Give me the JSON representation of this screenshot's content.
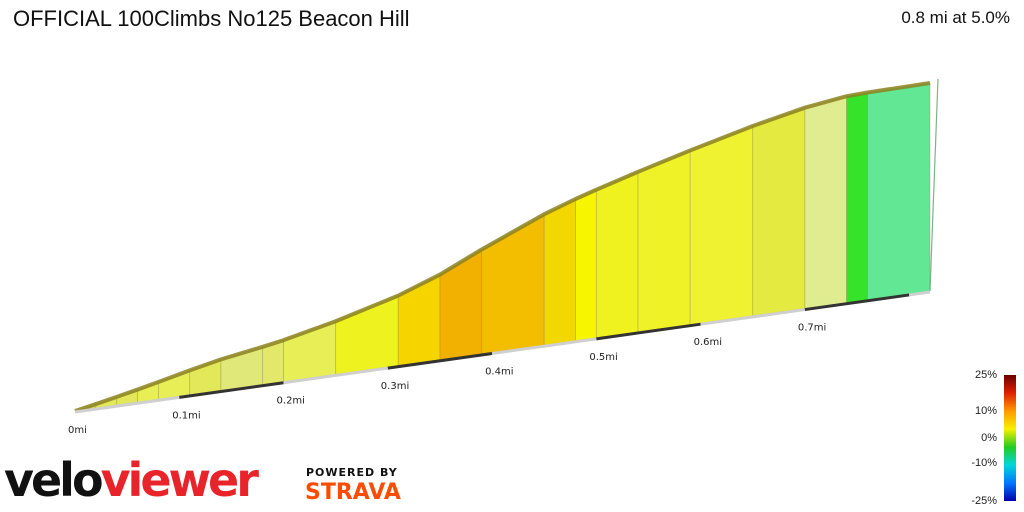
{
  "header": {
    "title": "OFFICIAL 100Climbs No125 Beacon Hill",
    "summary": "0.8 mi at 5.0%"
  },
  "chart_data": {
    "type": "area",
    "xlabel_unit": "mi",
    "x_ticks": [
      "0mi",
      "0.1mi",
      "0.2mi",
      "0.3mi",
      "0.4mi",
      "0.5mi",
      "0.6mi",
      "0.7mi"
    ],
    "segments": [
      {
        "x0": 0.0,
        "x1": 0.02,
        "gradient": 5.0,
        "color": "#d6da5a"
      },
      {
        "x0": 0.02,
        "x1": 0.04,
        "gradient": 5.3,
        "color": "#e3e85a"
      },
      {
        "x0": 0.04,
        "x1": 0.06,
        "gradient": 5.5,
        "color": "#e3e85a"
      },
      {
        "x0": 0.06,
        "x1": 0.08,
        "gradient": 5.8,
        "color": "#e8ee55"
      },
      {
        "x0": 0.08,
        "x1": 0.11,
        "gradient": 6.0,
        "color": "#e8ee55"
      },
      {
        "x0": 0.11,
        "x1": 0.14,
        "gradient": 5.5,
        "color": "#e3e85a"
      },
      {
        "x0": 0.14,
        "x1": 0.18,
        "gradient": 4.2,
        "color": "#e0e87a"
      },
      {
        "x0": 0.18,
        "x1": 0.2,
        "gradient": 4.6,
        "color": "#e3e86a"
      },
      {
        "x0": 0.2,
        "x1": 0.25,
        "gradient": 5.8,
        "color": "#e8ee55"
      },
      {
        "x0": 0.25,
        "x1": 0.31,
        "gradient": 7.0,
        "color": "#eef21e"
      },
      {
        "x0": 0.31,
        "x1": 0.35,
        "gradient": 9.5,
        "color": "#f5d400"
      },
      {
        "x0": 0.35,
        "x1": 0.39,
        "gradient": 12.0,
        "color": "#f2b000"
      },
      {
        "x0": 0.39,
        "x1": 0.45,
        "gradient": 11.0,
        "color": "#f4be00"
      },
      {
        "x0": 0.45,
        "x1": 0.48,
        "gradient": 9.0,
        "color": "#f3d800"
      },
      {
        "x0": 0.48,
        "x1": 0.5,
        "gradient": 8.0,
        "color": "#f8f500"
      },
      {
        "x0": 0.5,
        "x1": 0.54,
        "gradient": 7.5,
        "color": "#eff21e"
      },
      {
        "x0": 0.54,
        "x1": 0.59,
        "gradient": 7.0,
        "color": "#f0f228"
      },
      {
        "x0": 0.59,
        "x1": 0.65,
        "gradient": 6.5,
        "color": "#eef230"
      },
      {
        "x0": 0.65,
        "x1": 0.7,
        "gradient": 5.5,
        "color": "#e5ea40"
      },
      {
        "x0": 0.7,
        "x1": 0.74,
        "gradient": 3.5,
        "color": "#e0ec90"
      },
      {
        "x0": 0.74,
        "x1": 0.76,
        "gradient": 1.0,
        "color": "#37e32a"
      },
      {
        "x0": 0.76,
        "x1": 0.82,
        "gradient": 0.3,
        "color": "#62e895"
      }
    ],
    "color_scale": {
      "labels": [
        "25%",
        "10%",
        "0%",
        "-10%",
        "-25%"
      ],
      "stops": [
        "#6b0000",
        "#e02000",
        "#ff9900",
        "#f7f000",
        "#22cc22",
        "#00d8d8",
        "#0077ff",
        "#0000aa"
      ]
    }
  },
  "branding": {
    "logo_velo": "velo",
    "logo_viewer": "viewer",
    "powered_by": "POWERED BY",
    "strava": "STRAVA"
  }
}
